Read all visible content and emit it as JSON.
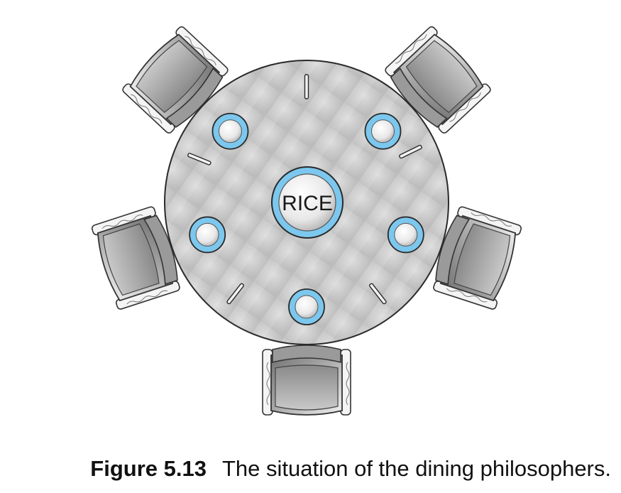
{
  "diagram": {
    "center_label": "RICE",
    "seat_count": 5,
    "chopstick_count": 5,
    "plate_count": 5
  },
  "caption": {
    "number": "Figure 5.13",
    "text": "The situation of the dining philosophers."
  },
  "colors": {
    "table_fill": "#c9c9c9",
    "table_stroke": "#2a2a2a",
    "plate_rim": "#7cc7ee",
    "plate_center": "#f4f4f4",
    "chair_body": "#a9a9a9",
    "chair_cushion": "#d6d6d6"
  }
}
